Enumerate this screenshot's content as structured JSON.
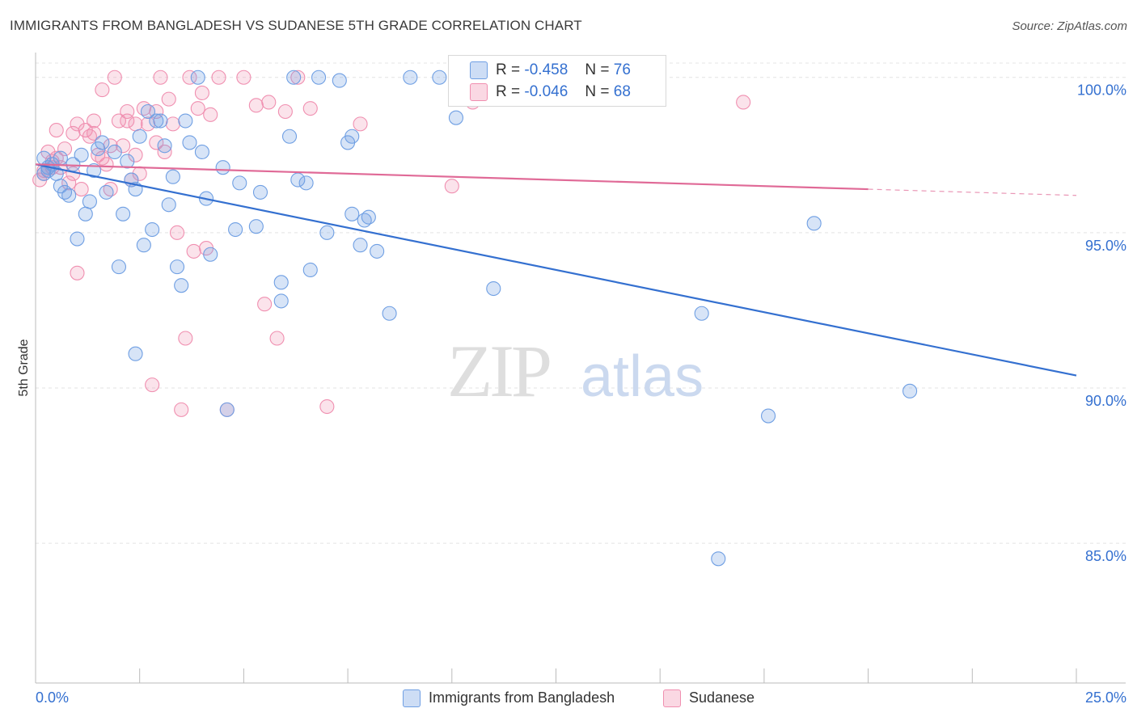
{
  "header": {
    "title": "IMMIGRANTS FROM BANGLADESH VS SUDANESE 5TH GRADE CORRELATION CHART",
    "source": "Source: ZipAtlas.com"
  },
  "watermark": {
    "part1": "ZIP",
    "part2": "atlas"
  },
  "legend": {
    "rows": [
      {
        "r_label": "R =",
        "r_value": "-0.458",
        "n_label": "N =",
        "n_value": "76"
      },
      {
        "r_label": "R =",
        "r_value": "-0.046",
        "n_label": "N =",
        "n_value": "68"
      }
    ]
  },
  "bottom_legend": [
    "Immigrants from Bangladesh",
    "Sudanese"
  ],
  "chart_data": {
    "type": "scatter",
    "title": "IMMIGRANTS FROM BANGLADESH VS SUDANESE 5TH GRADE CORRELATION CHART",
    "xlabel": "",
    "ylabel": "5th Grade",
    "xlim": [
      0,
      25
    ],
    "ylim": [
      80.5,
      100.8
    ],
    "x_tick_labels": [
      "0.0%",
      "25.0%"
    ],
    "y_ticks": [
      85,
      90,
      95,
      100
    ],
    "y_tick_labels": [
      "85.0%",
      "90.0%",
      "95.0%",
      "100.0%"
    ],
    "grid": true,
    "legend_position": "top-center",
    "colors": {
      "blue": "#6f9fe3",
      "blue_line": "#3470d0",
      "pink": "#f08fb0",
      "pink_line": "#e06a97",
      "tick_text": "#3470d0"
    },
    "series": [
      {
        "name": "Immigrants from Bangladesh",
        "r": -0.458,
        "n": 76,
        "trend": {
          "x": [
            0,
            25
          ],
          "y": [
            97.2,
            90.4
          ]
        },
        "points": [
          [
            0.2,
            96.9
          ],
          [
            0.2,
            97.4
          ],
          [
            0.3,
            97.1
          ],
          [
            0.4,
            97.2
          ],
          [
            0.5,
            96.9
          ],
          [
            0.6,
            96.5
          ],
          [
            0.6,
            97.4
          ],
          [
            0.7,
            96.3
          ],
          [
            0.8,
            96.2
          ],
          [
            0.9,
            97.2
          ],
          [
            1.0,
            94.8
          ],
          [
            1.2,
            95.6
          ],
          [
            1.3,
            96.0
          ],
          [
            1.4,
            97.0
          ],
          [
            1.5,
            97.7
          ],
          [
            1.6,
            97.9
          ],
          [
            1.7,
            96.3
          ],
          [
            1.9,
            97.6
          ],
          [
            2.0,
            93.9
          ],
          [
            2.1,
            95.6
          ],
          [
            2.2,
            97.3
          ],
          [
            2.3,
            96.7
          ],
          [
            2.4,
            91.1
          ],
          [
            2.5,
            98.1
          ],
          [
            2.6,
            94.6
          ],
          [
            2.7,
            98.9
          ],
          [
            2.8,
            95.1
          ],
          [
            2.9,
            98.6
          ],
          [
            3.0,
            98.6
          ],
          [
            3.1,
            97.8
          ],
          [
            3.2,
            95.9
          ],
          [
            3.3,
            96.8
          ],
          [
            3.4,
            93.9
          ],
          [
            3.5,
            93.3
          ],
          [
            3.6,
            98.6
          ],
          [
            3.7,
            97.9
          ],
          [
            3.9,
            100.0
          ],
          [
            4.0,
            97.6
          ],
          [
            4.1,
            96.1
          ],
          [
            4.2,
            94.3
          ],
          [
            4.5,
            97.1
          ],
          [
            4.6,
            89.3
          ],
          [
            4.8,
            95.1
          ],
          [
            4.9,
            96.6
          ],
          [
            5.3,
            95.2
          ],
          [
            5.4,
            96.3
          ],
          [
            5.9,
            93.4
          ],
          [
            5.9,
            92.8
          ],
          [
            6.1,
            98.1
          ],
          [
            6.2,
            100.0
          ],
          [
            6.3,
            96.7
          ],
          [
            6.5,
            96.6
          ],
          [
            6.6,
            93.8
          ],
          [
            6.8,
            100.0
          ],
          [
            7.0,
            95.0
          ],
          [
            7.3,
            99.9
          ],
          [
            7.5,
            97.9
          ],
          [
            7.6,
            98.1
          ],
          [
            7.6,
            95.6
          ],
          [
            7.8,
            94.6
          ],
          [
            7.9,
            95.4
          ],
          [
            8.0,
            95.5
          ],
          [
            8.2,
            94.4
          ],
          [
            8.5,
            92.4
          ],
          [
            9.0,
            100.0
          ],
          [
            9.7,
            100.0
          ],
          [
            10.1,
            98.7
          ],
          [
            11.0,
            93.2
          ],
          [
            16.0,
            92.4
          ],
          [
            16.4,
            84.5
          ],
          [
            17.6,
            89.1
          ],
          [
            18.7,
            95.3
          ],
          [
            21.0,
            89.9
          ],
          [
            0.3,
            97.0
          ],
          [
            1.1,
            97.5
          ],
          [
            2.4,
            96.4
          ]
        ]
      },
      {
        "name": "Sudanese",
        "r": -0.046,
        "n": 68,
        "trend": {
          "x": [
            0,
            20
          ],
          "y": [
            97.2,
            96.4
          ],
          "dashed_x": [
            20,
            25
          ],
          "dashed_y": [
            96.4,
            96.2
          ]
        },
        "points": [
          [
            0.1,
            96.7
          ],
          [
            0.2,
            97.0
          ],
          [
            0.3,
            97.6
          ],
          [
            0.4,
            97.3
          ],
          [
            0.5,
            98.3
          ],
          [
            0.6,
            97.1
          ],
          [
            0.7,
            97.7
          ],
          [
            0.8,
            96.6
          ],
          [
            0.9,
            98.2
          ],
          [
            1.0,
            98.5
          ],
          [
            1.0,
            93.7
          ],
          [
            1.1,
            96.4
          ],
          [
            1.2,
            98.3
          ],
          [
            1.3,
            98.1
          ],
          [
            1.4,
            98.6
          ],
          [
            1.5,
            97.5
          ],
          [
            1.6,
            99.6
          ],
          [
            1.7,
            97.2
          ],
          [
            1.8,
            96.4
          ],
          [
            1.9,
            100.0
          ],
          [
            2.0,
            98.6
          ],
          [
            2.1,
            97.8
          ],
          [
            2.2,
            98.9
          ],
          [
            2.3,
            96.7
          ],
          [
            2.4,
            98.5
          ],
          [
            2.5,
            96.9
          ],
          [
            2.6,
            99.0
          ],
          [
            2.7,
            98.5
          ],
          [
            2.8,
            90.1
          ],
          [
            2.9,
            97.9
          ],
          [
            3.0,
            100.0
          ],
          [
            3.1,
            97.6
          ],
          [
            3.2,
            99.3
          ],
          [
            3.3,
            98.5
          ],
          [
            3.4,
            95.0
          ],
          [
            3.5,
            89.3
          ],
          [
            3.6,
            91.6
          ],
          [
            3.7,
            100.0
          ],
          [
            3.8,
            94.4
          ],
          [
            3.9,
            99.0
          ],
          [
            4.0,
            99.5
          ],
          [
            4.1,
            94.5
          ],
          [
            4.2,
            98.8
          ],
          [
            4.4,
            100.0
          ],
          [
            4.6,
            89.3
          ],
          [
            5.0,
            100.0
          ],
          [
            5.3,
            99.1
          ],
          [
            5.5,
            92.7
          ],
          [
            5.6,
            99.2
          ],
          [
            5.8,
            91.6
          ],
          [
            6.0,
            98.9
          ],
          [
            6.3,
            100.0
          ],
          [
            6.6,
            99.0
          ],
          [
            7.0,
            89.4
          ],
          [
            7.8,
            98.5
          ],
          [
            10.0,
            96.5
          ],
          [
            10.5,
            99.2
          ],
          [
            17.0,
            99.2
          ],
          [
            0.2,
            96.9
          ],
          [
            0.5,
            97.4
          ],
          [
            1.4,
            98.2
          ],
          [
            2.2,
            98.6
          ],
          [
            0.9,
            96.9
          ],
          [
            1.6,
            97.4
          ],
          [
            2.4,
            97.5
          ],
          [
            0.4,
            97.1
          ],
          [
            1.8,
            97.8
          ],
          [
            2.9,
            98.9
          ]
        ]
      }
    ]
  }
}
